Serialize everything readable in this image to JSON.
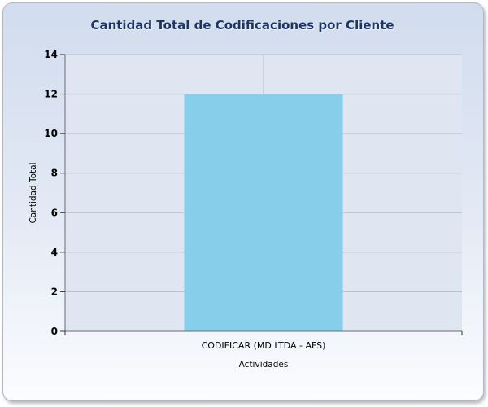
{
  "chart_data": {
    "type": "bar",
    "title": "Cantidad Total de Codificaciones por Cliente",
    "categories": [
      "CODIFICAR (MD LTDA - AFS)"
    ],
    "values": [
      12
    ],
    "xlabel": "Actividades",
    "ylabel": "Cantidad Total",
    "ylim": [
      0,
      14
    ],
    "yticks": [
      0,
      2,
      4,
      6,
      8,
      10,
      12,
      14
    ],
    "grid": true,
    "bar_color": "#87ceeb"
  }
}
